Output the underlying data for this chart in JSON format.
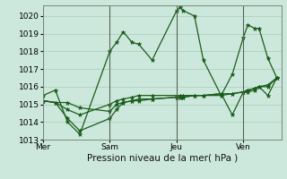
{
  "background_color": "#cce8dc",
  "grid_color": "#aaccb8",
  "line_color": "#1a5c1a",
  "marker_color": "#1a5c1a",
  "xlabel": "Pression niveau de la mer( hPa )",
  "ylim": [
    1013.0,
    1020.6
  ],
  "yticks": [
    1013,
    1014,
    1015,
    1016,
    1017,
    1018,
    1019,
    1020
  ],
  "xtick_labels": [
    "Mer",
    "Sam",
    "Jeu",
    "Ven"
  ],
  "axis_label_fontsize": 7.5,
  "tick_fontsize": 6.5,
  "series": [
    {
      "x": [
        0,
        0.55,
        1.1,
        1.65,
        3.0,
        3.3,
        3.6,
        4.0,
        4.3,
        4.9,
        6.0,
        6.15,
        6.3,
        6.8,
        7.2,
        8.0,
        8.5,
        9.0,
        9.2,
        9.5,
        9.7,
        10.1,
        10.5
      ],
      "y": [
        1015.5,
        1015.8,
        1014.0,
        1013.3,
        1018.0,
        1018.5,
        1019.1,
        1018.5,
        1018.4,
        1017.5,
        1020.3,
        1020.5,
        1020.3,
        1020.0,
        1017.5,
        1015.5,
        1016.7,
        1018.8,
        1019.5,
        1019.3,
        1019.3,
        1017.6,
        1016.5
      ]
    },
    {
      "x": [
        0,
        0.55,
        1.1,
        1.65,
        3.0,
        3.3,
        3.6,
        4.0,
        4.3,
        4.9,
        6.0,
        6.15,
        6.3,
        6.8,
        7.2,
        8.0,
        8.5,
        9.0,
        9.2,
        9.5,
        9.7,
        10.1,
        10.5
      ],
      "y": [
        1015.2,
        1015.1,
        1015.1,
        1014.8,
        1014.6,
        1015.0,
        1015.1,
        1015.2,
        1015.3,
        1015.3,
        1015.4,
        1015.4,
        1015.4,
        1015.5,
        1015.5,
        1015.6,
        1015.6,
        1015.7,
        1015.8,
        1015.9,
        1016.0,
        1016.0,
        1016.5
      ]
    },
    {
      "x": [
        0,
        0.55,
        1.1,
        1.65,
        3.0,
        3.3,
        3.6,
        4.0,
        4.3,
        4.9,
        6.0,
        6.15,
        6.3,
        6.8,
        7.2,
        8.0,
        8.5,
        9.0,
        9.2,
        9.5,
        9.7,
        10.1,
        10.5
      ],
      "y": [
        1015.2,
        1015.1,
        1014.2,
        1013.5,
        1014.2,
        1014.7,
        1015.1,
        1015.2,
        1015.2,
        1015.3,
        1015.4,
        1015.4,
        1015.4,
        1015.5,
        1015.5,
        1015.6,
        1014.4,
        1015.7,
        1015.8,
        1015.9,
        1016.0,
        1015.5,
        1016.5
      ]
    },
    {
      "x": [
        0,
        0.55,
        1.1,
        1.65,
        3.0,
        3.3,
        3.6,
        4.0,
        4.3,
        4.9,
        6.0,
        6.15,
        6.3,
        6.8,
        7.2,
        8.0,
        8.5,
        9.0,
        9.2,
        9.5,
        9.7,
        10.1,
        10.5
      ],
      "y": [
        1015.2,
        1015.1,
        1014.7,
        1014.4,
        1015.0,
        1015.2,
        1015.3,
        1015.4,
        1015.5,
        1015.5,
        1015.5,
        1015.5,
        1015.5,
        1015.5,
        1015.5,
        1015.5,
        1015.6,
        1015.7,
        1015.7,
        1015.8,
        1016.0,
        1016.1,
        1016.5
      ]
    }
  ],
  "day_vlines_x": [
    0.0,
    3.0,
    6.0,
    9.0
  ],
  "xlim": [
    0.0,
    10.7
  ]
}
